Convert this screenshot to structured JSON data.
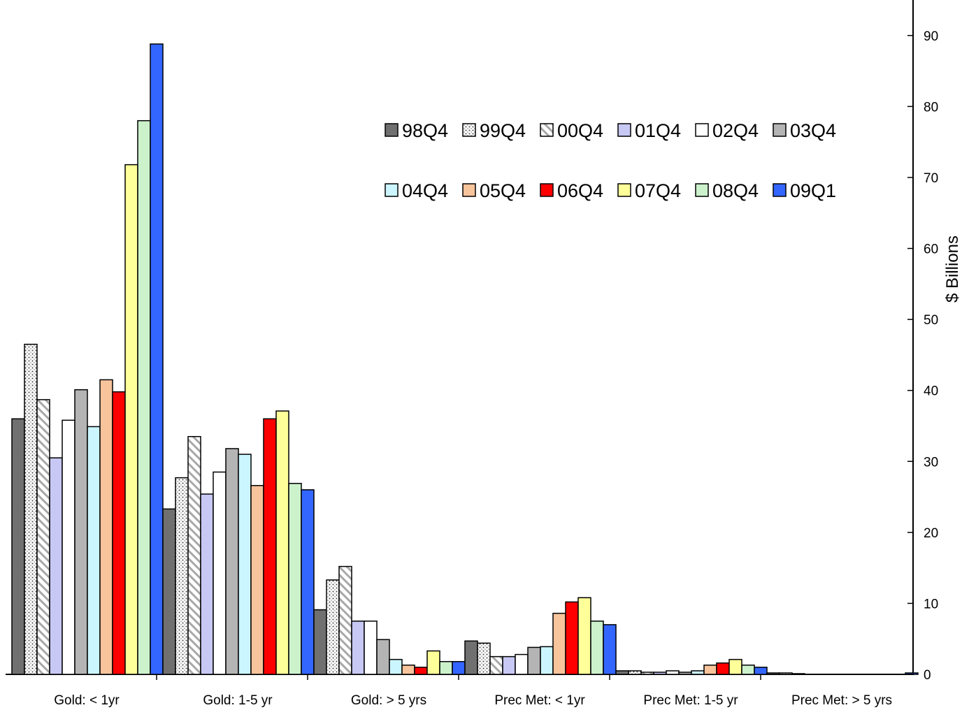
{
  "chart_data": {
    "type": "bar",
    "ylabel": "$ Billions",
    "ylim": [
      0,
      95
    ],
    "y_ticks": [
      0,
      10,
      20,
      30,
      40,
      50,
      60,
      70,
      80,
      90
    ],
    "y_axis_side": "right",
    "grid": false,
    "legend": "inside-top-right",
    "categories": [
      "Gold: < 1yr",
      "Gold: 1-5 yr",
      "Gold: > 5 yrs",
      "Prec Met: < 1yr",
      "Prec Met: 1-5 yr",
      "Prec Met: > 5 yrs"
    ],
    "series": [
      {
        "name": "98Q4",
        "color": "#707070",
        "pattern": "solid",
        "values": [
          36.0,
          23.3,
          9.1,
          4.7,
          0.5,
          0.2
        ]
      },
      {
        "name": "99Q4",
        "color": "#ffffff",
        "pattern": "dots",
        "values": [
          46.5,
          27.7,
          13.3,
          4.4,
          0.5,
          0.2
        ]
      },
      {
        "name": "00Q4",
        "color": "#ffffff",
        "pattern": "hatch",
        "values": [
          38.7,
          33.5,
          15.2,
          2.5,
          0.3,
          0.1
        ]
      },
      {
        "name": "01Q4",
        "color": "#c8c8f5",
        "pattern": "solid",
        "values": [
          30.5,
          25.4,
          7.5,
          2.5,
          0.3,
          0.0
        ]
      },
      {
        "name": "02Q4",
        "color": "#ffffff",
        "pattern": "solid",
        "values": [
          35.8,
          28.5,
          7.5,
          2.8,
          0.5,
          0.0
        ]
      },
      {
        "name": "03Q4",
        "color": "#b4b4b4",
        "pattern": "solid",
        "values": [
          40.1,
          31.8,
          4.9,
          3.8,
          0.3,
          0.0
        ]
      },
      {
        "name": "04Q4",
        "color": "#ccf6ff",
        "pattern": "solid",
        "values": [
          34.9,
          31.0,
          2.1,
          3.9,
          0.5,
          0.0
        ]
      },
      {
        "name": "05Q4",
        "color": "#f8c49c",
        "pattern": "solid",
        "values": [
          41.5,
          26.6,
          1.3,
          8.6,
          1.3,
          0.0
        ]
      },
      {
        "name": "06Q4",
        "color": "#ff0000",
        "pattern": "solid",
        "values": [
          39.8,
          36.0,
          1.0,
          10.2,
          1.6,
          0.0
        ]
      },
      {
        "name": "07Q4",
        "color": "#ffff99",
        "pattern": "solid",
        "values": [
          71.8,
          37.1,
          3.3,
          10.8,
          2.1,
          0.0
        ]
      },
      {
        "name": "08Q4",
        "color": "#ccf2cc",
        "pattern": "solid",
        "values": [
          78.0,
          26.9,
          1.8,
          7.5,
          1.3,
          0.0
        ]
      },
      {
        "name": "09Q1",
        "color": "#3366ff",
        "pattern": "solid",
        "values": [
          88.8,
          26.0,
          1.8,
          7.0,
          1.0,
          0.2
        ]
      }
    ]
  }
}
